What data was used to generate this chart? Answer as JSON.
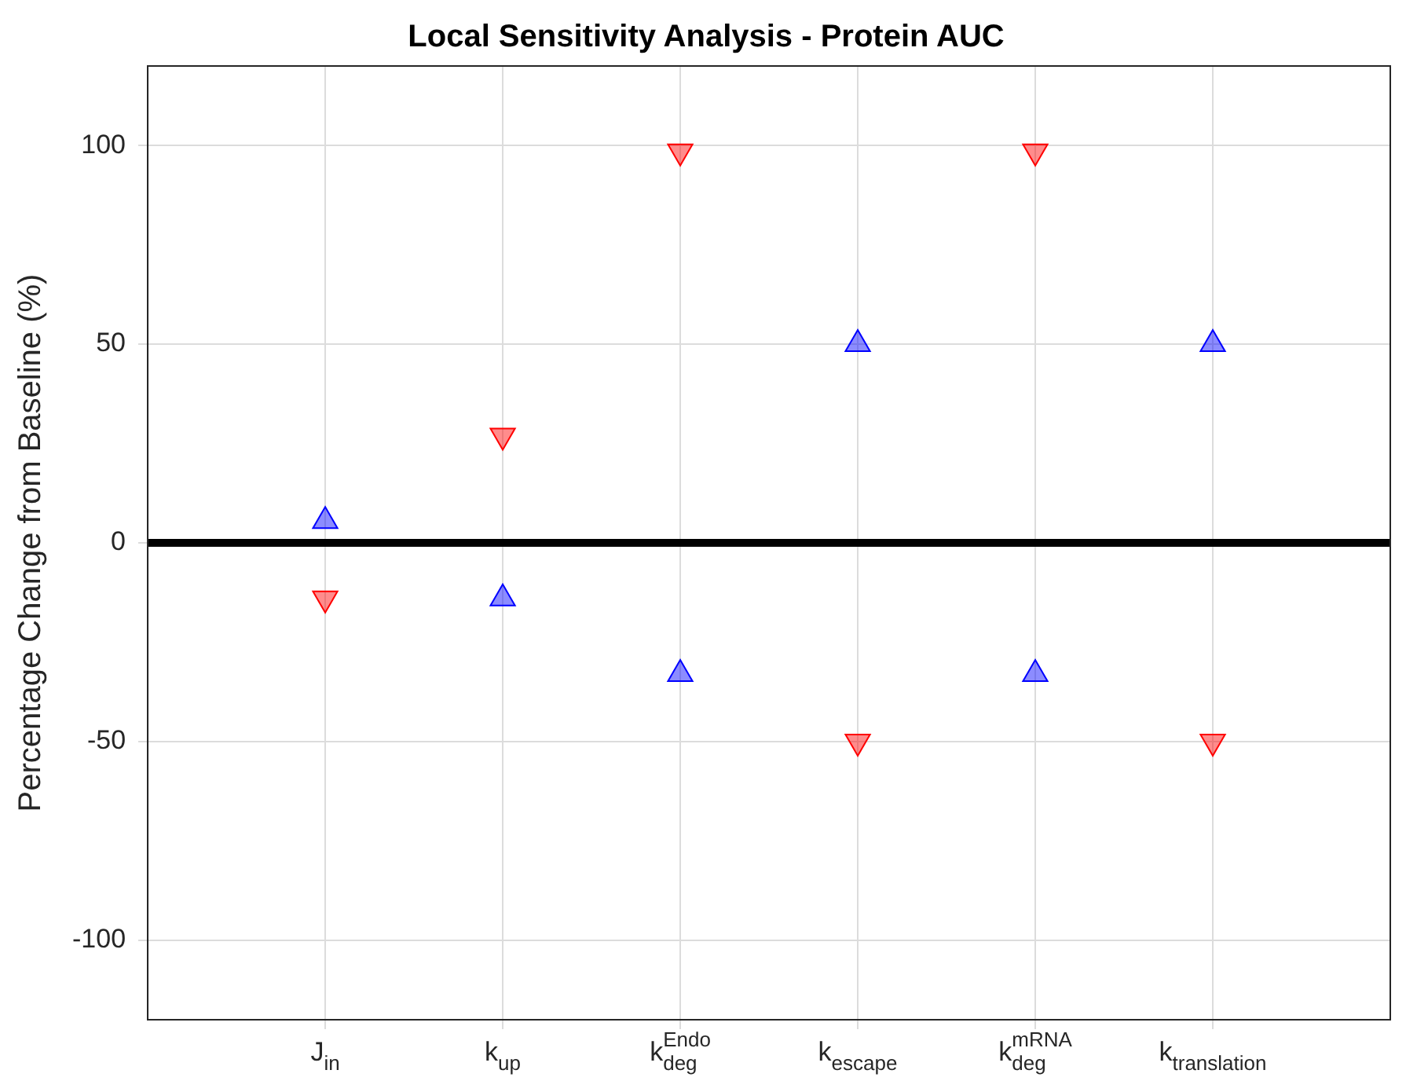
{
  "chart_data": {
    "type": "scatter",
    "title": "Local Sensitivity Analysis - Protein AUC",
    "ylabel": "Percentage Change from Baseline (%)",
    "categories": [
      "J$_{in}$",
      "k$_{up}$",
      "k$_{deg}$$^{Endo}$",
      "k$_{escape}$",
      "k$_{deg}$$^{mRNA}$",
      "k$_{translation}$"
    ],
    "series": [
      {
        "color": "#0000ff",
        "marker": "triangle",
        "values": [
          5.5,
          -14,
          -33,
          50,
          -33,
          50
        ]
      },
      {
        "color": "#ff0000",
        "marker": "triangle-down",
        "values": [
          -14,
          27,
          98.5,
          -50,
          98.5,
          -50
        ]
      }
    ],
    "ylim": [
      -120,
      120
    ],
    "yticks": [
      -100,
      -50,
      0,
      50,
      100
    ],
    "grid": true,
    "legend": false,
    "ref_lines": [
      {
        "axis": "y",
        "value": 0,
        "color": "#000000"
      }
    ]
  }
}
